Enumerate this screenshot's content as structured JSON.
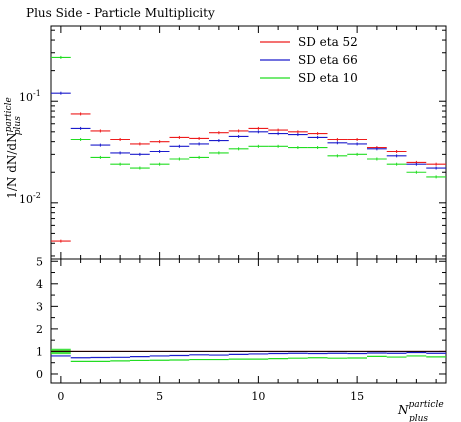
{
  "chart_data": [
    {
      "type": "line",
      "title": "Plus Side - Particle Multiplicity",
      "ylabel_main": "1/N dN/dN",
      "ylabel_sup": "particle",
      "ylabel_sub": "plus",
      "yscale": "log",
      "ylim": [
        0.0028,
        0.55
      ],
      "xlim": [
        -0.5,
        19.5
      ],
      "ytick_labels": [
        "10",
        "10"
      ],
      "ytick_exponents": [
        "-1",
        "-2"
      ],
      "legend_position": "top-right",
      "series": [
        {
          "name": "SD eta 52",
          "color": "#ee1c1c",
          "x": [
            0,
            1,
            2,
            3,
            4,
            5,
            6,
            7,
            8,
            9,
            10,
            11,
            12,
            13,
            14,
            15,
            16,
            17,
            18,
            19
          ],
          "values": [
            0.0042,
            0.075,
            0.051,
            0.042,
            0.038,
            0.04,
            0.044,
            0.043,
            0.049,
            0.051,
            0.054,
            0.052,
            0.05,
            0.048,
            0.042,
            0.042,
            0.035,
            0.032,
            0.025,
            0.024
          ]
        },
        {
          "name": "SD eta 66",
          "color": "#1c1ccc",
          "x": [
            0,
            1,
            2,
            3,
            4,
            5,
            6,
            7,
            8,
            9,
            10,
            11,
            12,
            13,
            14,
            15,
            16,
            17,
            18,
            19
          ],
          "values": [
            0.12,
            0.054,
            0.037,
            0.031,
            0.03,
            0.032,
            0.036,
            0.038,
            0.041,
            0.045,
            0.05,
            0.048,
            0.047,
            0.044,
            0.039,
            0.038,
            0.034,
            0.029,
            0.024,
            0.022
          ]
        },
        {
          "name": "SD eta 10",
          "color": "#22dd22",
          "x": [
            0,
            1,
            2,
            3,
            4,
            5,
            6,
            7,
            8,
            9,
            10,
            11,
            12,
            13,
            14,
            15,
            16,
            17,
            18,
            19
          ],
          "values": [
            0.27,
            0.042,
            0.028,
            0.024,
            0.022,
            0.024,
            0.027,
            0.028,
            0.031,
            0.034,
            0.036,
            0.036,
            0.035,
            0.035,
            0.029,
            0.03,
            0.027,
            0.024,
            0.02,
            0.018
          ]
        }
      ]
    },
    {
      "type": "line",
      "title": "",
      "xlabel_main": "N",
      "xlabel_sup": "particle",
      "xlabel_sub": "plus",
      "ylim": [
        -0.4,
        5.1
      ],
      "xlim": [
        -0.5,
        19.5
      ],
      "xtick_values": [
        0,
        5,
        10,
        15
      ],
      "xtick_labels": [
        "0",
        "5",
        "10",
        "15"
      ],
      "ytick_values": [
        0,
        1,
        2,
        3,
        4,
        5
      ],
      "ytick_labels": [
        "0",
        "1",
        "2",
        "3",
        "4",
        "5"
      ],
      "reference_line": 1,
      "series": [
        {
          "name": "SD eta 66",
          "color": "#1c1ccc",
          "x": [
            0,
            1,
            2,
            3,
            4,
            5,
            6,
            7,
            8,
            9,
            10,
            11,
            12,
            13,
            14,
            15,
            16,
            17,
            18,
            19
          ],
          "values": [
            0.8,
            0.72,
            0.73,
            0.74,
            0.77,
            0.8,
            0.82,
            0.85,
            0.84,
            0.87,
            0.89,
            0.91,
            0.92,
            0.91,
            0.92,
            0.91,
            0.93,
            0.92,
            0.95,
            0.92
          ]
        },
        {
          "name": "SD eta 10",
          "color": "#22dd22",
          "x": [
            0,
            1,
            2,
            3,
            4,
            5,
            6,
            7,
            8,
            9,
            10,
            11,
            12,
            13,
            14,
            15,
            16,
            17,
            18,
            19
          ],
          "values": [
            1.0,
            0.56,
            0.56,
            0.58,
            0.6,
            0.61,
            0.62,
            0.64,
            0.64,
            0.66,
            0.66,
            0.68,
            0.7,
            0.72,
            0.7,
            0.71,
            0.78,
            0.75,
            0.8,
            0.76
          ]
        },
        {
          "name": "SD eta 52",
          "color": "#ee1c1c",
          "x": [
            0,
            1,
            2,
            3,
            4,
            5,
            6,
            7,
            8,
            9,
            10,
            11,
            12,
            13,
            14,
            15,
            16,
            17,
            18,
            19
          ],
          "values": [
            1.0,
            1.0,
            1.0,
            1.0,
            1.0,
            1.0,
            1.0,
            1.0,
            1.0,
            1.0,
            1.0,
            1.0,
            1.0,
            1.0,
            1.0,
            1.0,
            1.0,
            1.0,
            1.0,
            1.0
          ]
        }
      ]
    }
  ]
}
